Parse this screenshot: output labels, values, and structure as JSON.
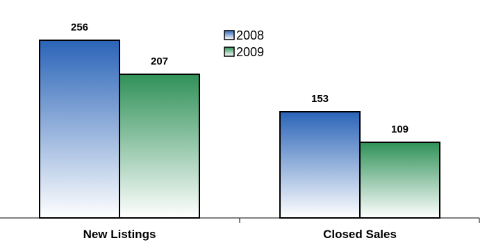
{
  "chart_data": {
    "type": "bar",
    "categories": [
      "New Listings",
      "Closed Sales"
    ],
    "series": [
      {
        "name": "2008",
        "values": [
          256,
          153
        ],
        "color": "#2a64b8",
        "fade": "#ffffff"
      },
      {
        "name": "2009",
        "values": [
          207,
          109
        ],
        "color": "#2f9158",
        "fade": "#ffffff"
      }
    ],
    "ylim": [
      0,
      284
    ],
    "grid": false,
    "data_labels": true,
    "legend_position": "top-center",
    "title": "",
    "xlabel": "",
    "ylabel": ""
  }
}
